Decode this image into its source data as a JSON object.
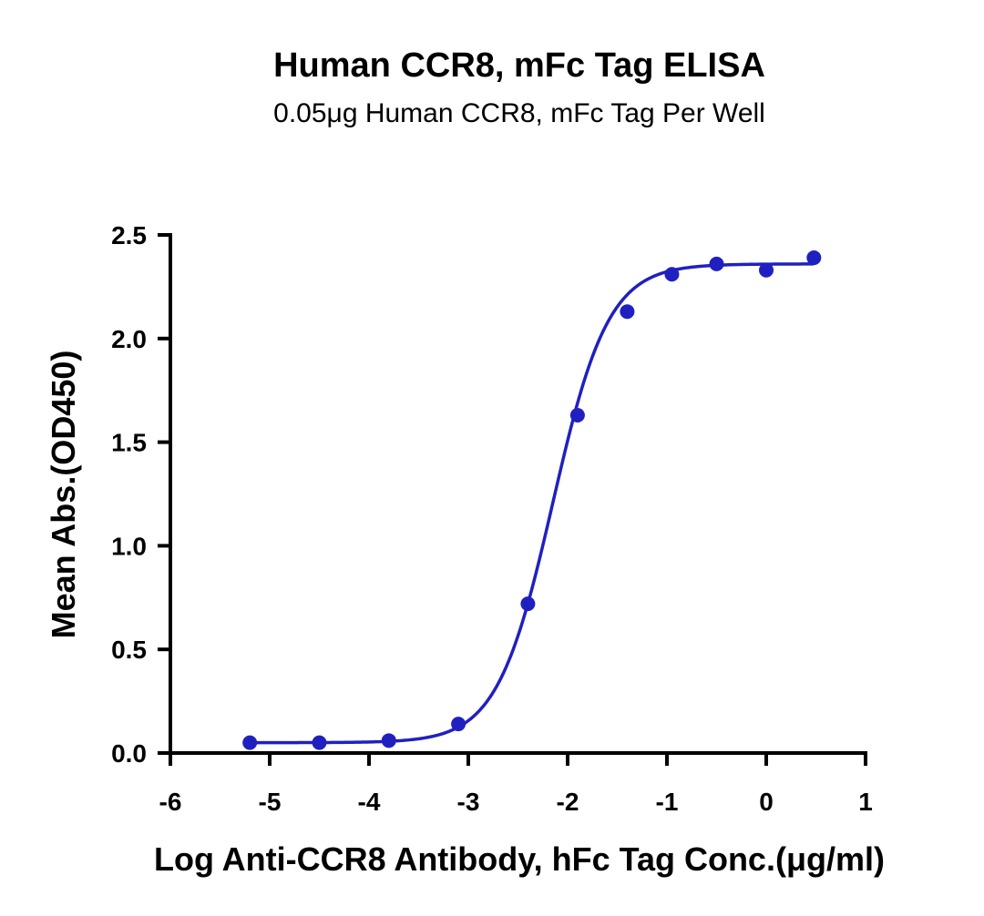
{
  "chart_data": {
    "type": "scatter",
    "title": "Human CCR8, mFc Tag ELISA",
    "subtitle": "0.05μg Human CCR8, mFc Tag Per Well",
    "xlabel": "Log Anti-CCR8 Antibody, hFc Tag Conc.(μg/ml)",
    "ylabel": "Mean Abs.(OD450)",
    "xlim": [
      -6,
      1
    ],
    "ylim": [
      0,
      2.5
    ],
    "x_ticks": [
      -6,
      -5,
      -4,
      -3,
      -2,
      -1,
      0,
      1
    ],
    "x_tick_labels": [
      "-6",
      "-5",
      "-4",
      "-3",
      "-2",
      "-1",
      "0",
      "1"
    ],
    "y_ticks": [
      0,
      0.5,
      1,
      1.5,
      2,
      2.5
    ],
    "y_tick_labels": [
      "0.0",
      "0.5",
      "1.0",
      "1.5",
      "2.0",
      "2.5"
    ],
    "grid": false,
    "legend": "none",
    "series": [
      {
        "color": "#2020c0",
        "x": [
          -5.2,
          -4.5,
          -3.8,
          -3.1,
          -2.4,
          -1.9,
          -1.4,
          -0.95,
          -0.5,
          0.0,
          0.48
        ],
        "y": [
          0.05,
          0.05,
          0.06,
          0.14,
          0.72,
          1.63,
          2.13,
          2.31,
          2.36,
          2.33,
          2.39
        ]
      }
    ],
    "fit_curve": {
      "model": "4PL",
      "color": "#2020c0",
      "bottom": 0.05,
      "top": 2.36,
      "logEC50": -2.15,
      "hill": 1.55,
      "x_range": [
        -5.2,
        0.48
      ]
    }
  }
}
